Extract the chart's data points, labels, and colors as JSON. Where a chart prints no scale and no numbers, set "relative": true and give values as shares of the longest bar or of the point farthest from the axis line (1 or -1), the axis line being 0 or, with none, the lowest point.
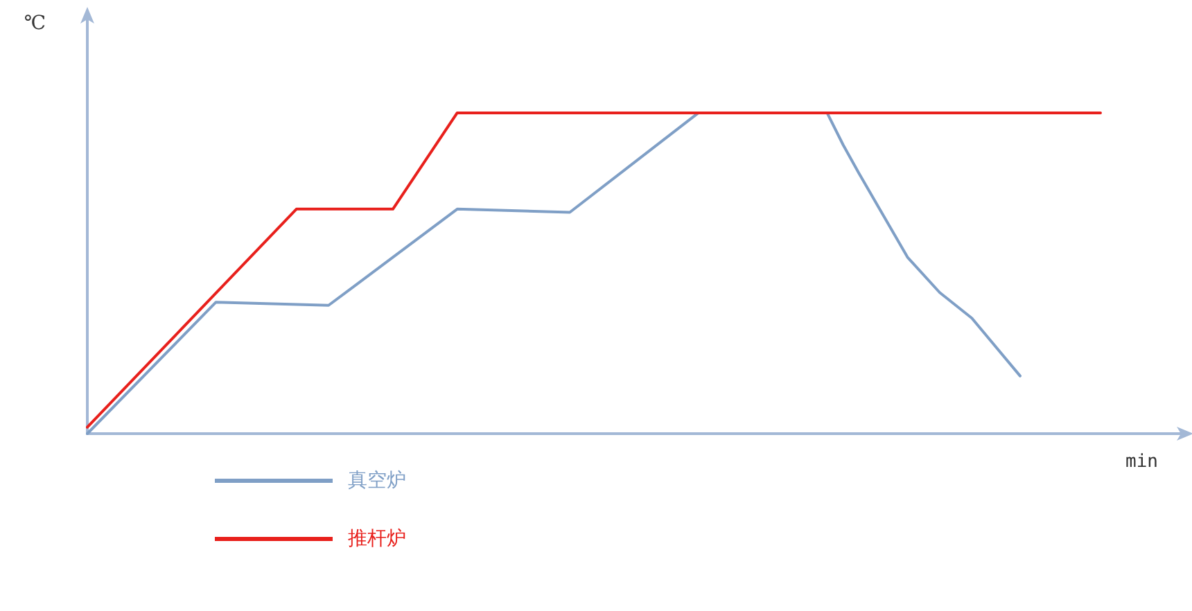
{
  "chart_data": {
    "type": "line",
    "relative": true,
    "xlabel": "min",
    "ylabel": "℃",
    "grid": false,
    "legend": "bottom left",
    "marker": "none",
    "line_style": "solid",
    "categories": [
      null,
      null,
      null,
      null,
      null,
      null,
      null,
      null,
      null,
      null,
      null,
      null,
      null,
      null,
      null,
      null,
      null,
      null,
      null,
      null,
      null,
      null,
      null,
      null,
      null,
      null,
      null,
      null,
      null,
      null,
      null,
      null,
      null,
      null,
      null,
      null,
      null,
      null,
      null,
      null,
      null,
      null,
      null,
      null,
      null,
      null,
      null,
      null,
      null,
      null,
      null,
      null,
      null,
      null,
      null,
      null,
      null,
      null,
      null,
      null,
      null,
      null,
      null,
      null,
      null,
      null,
      null,
      null,
      null
    ],
    "series": [
      {
        "name": "真空炉",
        "color": "#7f9fc6",
        "values": [
          0,
          null,
          null,
          null,
          null,
          null,
          null,
          null,
          0.41,
          null,
          null,
          null,
          null,
          null,
          null,
          0.4,
          null,
          null,
          null,
          null,
          null,
          null,
          null,
          0.7,
          null,
          null,
          null,
          null,
          null,
          null,
          0.69,
          null,
          null,
          null,
          null,
          null,
          null,
          null,
          1,
          null,
          null,
          null,
          null,
          null,
          null,
          null,
          1,
          0.9,
          0.81,
          null,
          null,
          0.55,
          null,
          0.44,
          null,
          0.36,
          null,
          null,
          0.18,
          null,
          null,
          null,
          null,
          null,
          null,
          null,
          null,
          null,
          null
        ]
      },
      {
        "name": "推杆炉",
        "color": "#e8201c",
        "values": [
          0.02,
          null,
          null,
          null,
          null,
          null,
          null,
          null,
          null,
          null,
          null,
          null,
          null,
          0.7,
          null,
          null,
          null,
          null,
          null,
          0.7,
          null,
          null,
          null,
          1,
          null,
          null,
          null,
          null,
          null,
          null,
          null,
          null,
          null,
          null,
          null,
          null,
          null,
          null,
          null,
          null,
          null,
          null,
          null,
          null,
          null,
          null,
          null,
          null,
          null,
          null,
          null,
          null,
          null,
          null,
          null,
          null,
          null,
          null,
          null,
          null,
          null,
          null,
          null,
          1,
          null,
          null,
          null,
          null,
          null
        ]
      }
    ]
  }
}
